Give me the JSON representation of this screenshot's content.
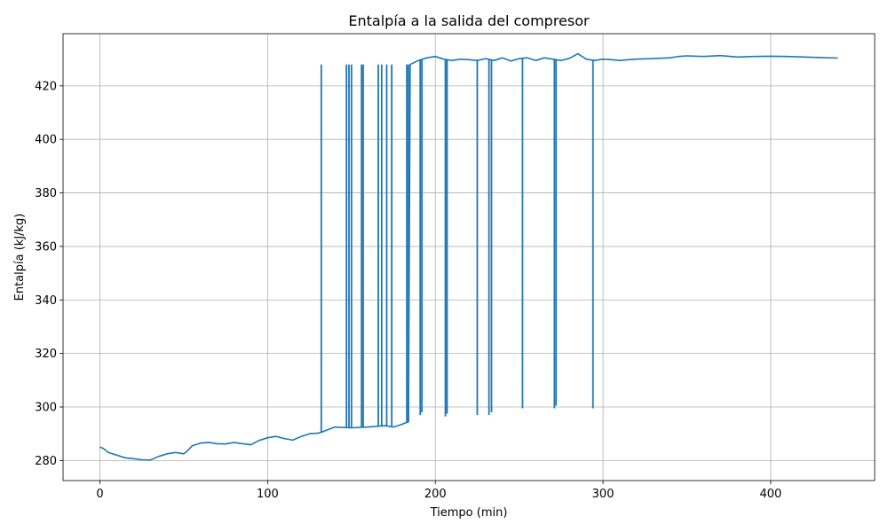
{
  "chart_data": {
    "type": "line",
    "title": "Entalpía a la salida del compresor",
    "xlabel": "Tiempo (min)",
    "ylabel": "Entalpía (kJ/kg)",
    "xlim": [
      -22,
      462
    ],
    "ylim": [
      272.5,
      439.5
    ],
    "xticks": [
      0,
      100,
      200,
      300,
      400
    ],
    "yticks": [
      280,
      300,
      320,
      340,
      360,
      380,
      400,
      420
    ],
    "grid": true,
    "colors": {
      "line": "#1f77b4",
      "grid": "#b0b0b0",
      "axes": "#000000"
    },
    "series": [
      {
        "baseline": [
          [
            0,
            285
          ],
          [
            2,
            284.5
          ],
          [
            5,
            283
          ],
          [
            10,
            282
          ],
          [
            15,
            281
          ],
          [
            20,
            280.7
          ],
          [
            25,
            280.3
          ],
          [
            30,
            280.2
          ],
          [
            35,
            281.5
          ],
          [
            40,
            282.5
          ],
          [
            45,
            283
          ],
          [
            50,
            282.5
          ],
          [
            52,
            283.5
          ],
          [
            55,
            285.5
          ],
          [
            60,
            286.5
          ],
          [
            65,
            286.7
          ],
          [
            70,
            286.3
          ],
          [
            75,
            286.2
          ],
          [
            80,
            286.7
          ],
          [
            85,
            286.3
          ],
          [
            90,
            285.9
          ],
          [
            95,
            287.5
          ],
          [
            100,
            288.5
          ],
          [
            105,
            289
          ],
          [
            110,
            288.2
          ],
          [
            115,
            287.6
          ],
          [
            120,
            289
          ],
          [
            125,
            290
          ],
          [
            130,
            290.2
          ],
          [
            133,
            290.8
          ],
          [
            140,
            292.5
          ],
          [
            150,
            292.2
          ],
          [
            160,
            292.5
          ],
          [
            170,
            293
          ],
          [
            175,
            292.5
          ],
          [
            180,
            293.5
          ],
          [
            184,
            294.5
          ],
          [
            185,
            428
          ],
          [
            190,
            429.5
          ],
          [
            195,
            430.5
          ],
          [
            200,
            431
          ],
          [
            205,
            430
          ],
          [
            210,
            429.5
          ],
          [
            215,
            430
          ],
          [
            220,
            429.8
          ],
          [
            225,
            429.5
          ],
          [
            230,
            430.2
          ],
          [
            235,
            429.5
          ],
          [
            240,
            430.5
          ],
          [
            245,
            429.3
          ],
          [
            250,
            430.2
          ],
          [
            255,
            430.5
          ],
          [
            260,
            429.5
          ],
          [
            265,
            430.5
          ],
          [
            270,
            430
          ],
          [
            275,
            429.5
          ],
          [
            280,
            430.3
          ],
          [
            285,
            432
          ],
          [
            290,
            430
          ],
          [
            295,
            429.5
          ],
          [
            300,
            430
          ],
          [
            305,
            429.8
          ],
          [
            310,
            429.5
          ],
          [
            315,
            429.8
          ],
          [
            320,
            430
          ],
          [
            330,
            430.2
          ],
          [
            340,
            430.5
          ],
          [
            345,
            431
          ],
          [
            350,
            431.2
          ],
          [
            360,
            431
          ],
          [
            370,
            431.3
          ],
          [
            380,
            430.8
          ],
          [
            390,
            431
          ],
          [
            400,
            431.1
          ],
          [
            410,
            431
          ],
          [
            420,
            430.8
          ],
          [
            430,
            430.6
          ],
          [
            440,
            430.4
          ]
        ],
        "spikes_to_upper": [
          132,
          147,
          148.5,
          150,
          156,
          157,
          166,
          168,
          171,
          174,
          183,
          184
        ],
        "spikes_to_lower": [
          [
            191,
            297
          ],
          [
            192,
            298
          ],
          [
            206,
            296.5
          ],
          [
            207,
            297.5
          ],
          [
            225,
            297
          ],
          [
            232,
            297
          ],
          [
            233.5,
            298
          ],
          [
            252,
            299.5
          ],
          [
            271,
            299.5
          ],
          [
            272,
            300.5
          ],
          [
            294,
            299.5
          ]
        ],
        "upper_level": 428
      }
    ]
  }
}
